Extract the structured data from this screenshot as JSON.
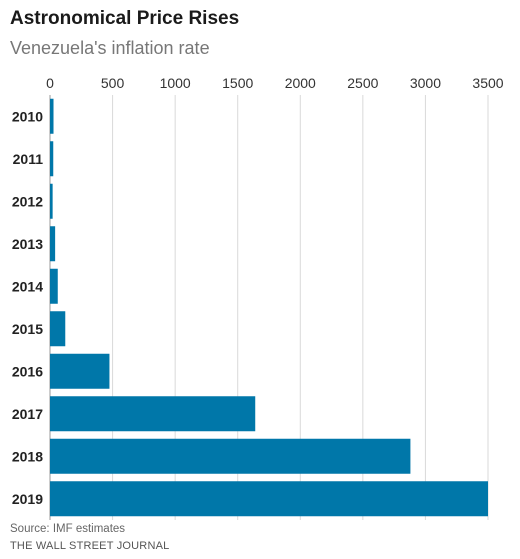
{
  "chart_data": {
    "type": "bar",
    "orientation": "horizontal",
    "title": "Astronomical Price Rises",
    "subtitle": "Venezuela's inflation rate",
    "categories": [
      "2010",
      "2011",
      "2012",
      "2013",
      "2014",
      "2015",
      "2016",
      "2017",
      "2018",
      "2019"
    ],
    "values": [
      28,
      26,
      21,
      41,
      62,
      122,
      475,
      1640,
      2880,
      3500
    ],
    "xlim": [
      0,
      3500
    ],
    "xticks": [
      0,
      500,
      1000,
      1500,
      2000,
      2500,
      3000,
      3500
    ],
    "grid": true,
    "bar_color": "#0077a9",
    "source": "Source: IMF estimates",
    "credit": "THE WALL STREET JOURNAL"
  }
}
